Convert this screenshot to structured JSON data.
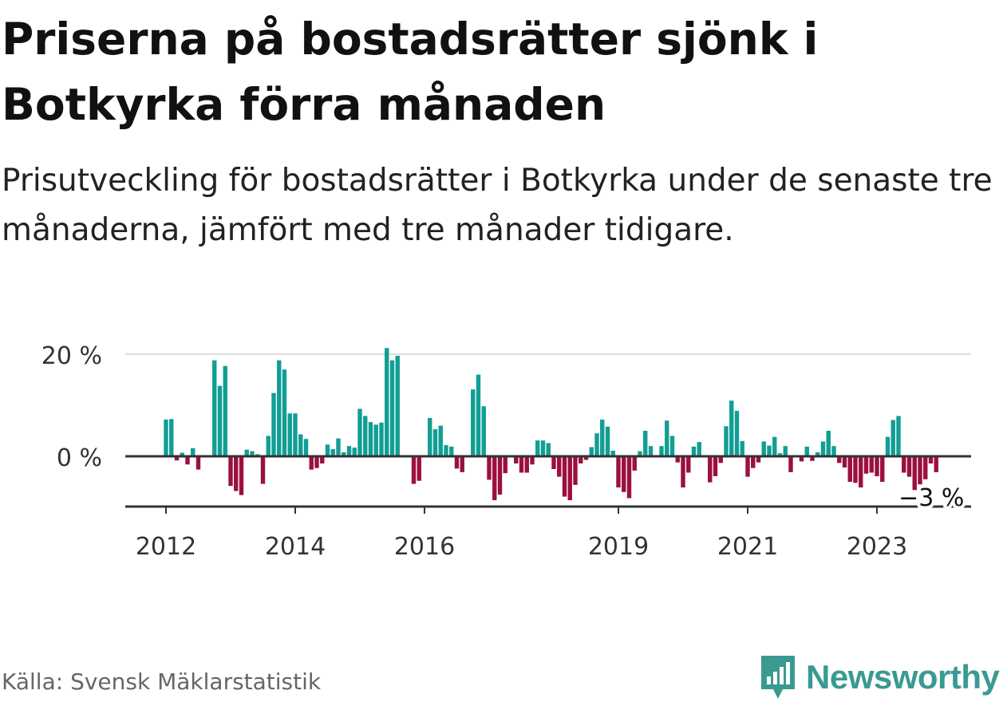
{
  "header": {
    "title": "Priserna på bostadsrätter sjönk i Botkyrka förra månaden",
    "subtitle": "Prisutveckling för bostadsrätter i Botkyrka under de senaste tre månaderna, jämfört med tre månader tidigare."
  },
  "footer": {
    "source": "Källa: Svensk Mäklarstatistik",
    "brand": "Newsworthy"
  },
  "colors": {
    "positive": "#119e94",
    "negative": "#9c0f3f",
    "axis": "#333333",
    "grid": "#dddddd",
    "brand": "#3a9a92"
  },
  "chart_data": {
    "type": "bar",
    "title": "",
    "xlabel": "",
    "ylabel": "",
    "ylim": [
      -10,
      22
    ],
    "y_ticks": [
      0,
      20
    ],
    "y_tick_labels": [
      "0 %",
      "20 %"
    ],
    "x_tick_labels": [
      {
        "label": "2012",
        "index": 0
      },
      {
        "label": "2014",
        "index": 24
      },
      {
        "label": "2016",
        "index": 48
      },
      {
        "label": "2019",
        "index": 84
      },
      {
        "label": "2021",
        "index": 108
      },
      {
        "label": "2023",
        "index": 132
      }
    ],
    "start": "2012-01",
    "end_label": "−3 %",
    "values": [
      7.2,
      7.3,
      -0.8,
      0.7,
      -1.6,
      1.6,
      -2.6,
      0,
      0,
      18.8,
      13.8,
      17.7,
      -5.8,
      -6.8,
      -7.6,
      1.3,
      1.0,
      0.4,
      -5.4,
      4.0,
      12.4,
      18.8,
      17.0,
      8.4,
      8.4,
      4.3,
      3.4,
      -2.6,
      -2.3,
      -1.4,
      2.3,
      1.4,
      3.5,
      0.8,
      2.0,
      1.7,
      9.3,
      7.9,
      6.7,
      6.2,
      6.6,
      21.2,
      18.8,
      19.7,
      0,
      0,
      -5.4,
      -4.8,
      0,
      7.5,
      5.3,
      6.0,
      2.2,
      1.9,
      -2.4,
      -3.1,
      0,
      13.1,
      16.0,
      9.8,
      -4.6,
      -8.6,
      -7.5,
      -3.3,
      0,
      -1.4,
      -3.2,
      -3.2,
      -1.6,
      3.1,
      3.1,
      2.6,
      -2.5,
      -4.0,
      -7.9,
      -8.6,
      -5.6,
      -1.4,
      -0.7,
      1.8,
      4.5,
      7.2,
      5.8,
      1.1,
      -6.1,
      -7.0,
      -8.2,
      -2.8,
      1.0,
      5.0,
      2.0,
      0,
      2.0,
      7.0,
      4.0,
      -1.2,
      -6.1,
      -3.2,
      1.9,
      2.8,
      0,
      -5.1,
      -3.9,
      -1.3,
      5.9,
      10.9,
      8.9,
      3.0,
      -4.0,
      -2.3,
      -1.2,
      2.9,
      2.1,
      3.8,
      0.6,
      2.0,
      -3.1,
      -0.2,
      -1.0,
      1.9,
      -0.9,
      0.8,
      2.9,
      5.0,
      2.0,
      -1.3,
      -2.2,
      -5.0,
      -5.2,
      -6.1,
      -3.4,
      -3.2,
      -3.9,
      -5.0,
      3.8,
      7.1,
      7.9,
      -3.2,
      -4.0,
      -6.6,
      -5.5,
      -4.5,
      -1.4,
      -3.1
    ]
  }
}
